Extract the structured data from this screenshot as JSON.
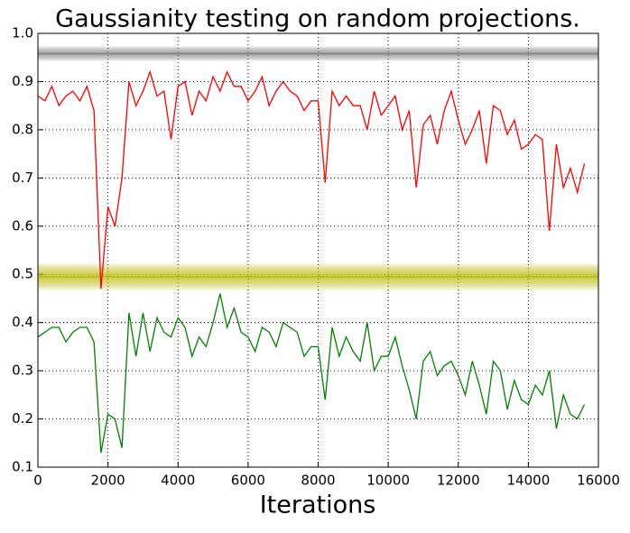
{
  "chart_data": {
    "type": "line",
    "title": "Gaussianity testing on random projections.",
    "xlabel": "Iterations",
    "x": [
      0,
      200,
      400,
      600,
      800,
      1000,
      1200,
      1400,
      1600,
      1800,
      2000,
      2200,
      2400,
      2600,
      2800,
      3000,
      3200,
      3400,
      3600,
      3800,
      4000,
      4200,
      4400,
      4600,
      4800,
      5000,
      5200,
      5400,
      5600,
      5800,
      6000,
      6200,
      6400,
      6600,
      6800,
      7000,
      7200,
      7400,
      7600,
      7800,
      8000,
      8200,
      8400,
      8600,
      8800,
      9000,
      9200,
      9400,
      9600,
      9800,
      10000,
      10200,
      10400,
      10600,
      10800,
      11000,
      11200,
      11400,
      11600,
      11800,
      12000,
      12200,
      12400,
      12600,
      12800,
      13000,
      13200,
      13400,
      13600,
      13800,
      14000,
      14200,
      14400,
      14600,
      14800,
      15000,
      15200,
      15400,
      15600
    ],
    "series": [
      {
        "color": "#ff0000",
        "values": [
          0.87,
          0.86,
          0.89,
          0.85,
          0.87,
          0.88,
          0.86,
          0.89,
          0.84,
          0.47,
          0.64,
          0.6,
          0.7,
          0.9,
          0.85,
          0.88,
          0.92,
          0.87,
          0.88,
          0.78,
          0.89,
          0.9,
          0.83,
          0.88,
          0.86,
          0.91,
          0.88,
          0.92,
          0.89,
          0.89,
          0.86,
          0.88,
          0.91,
          0.85,
          0.88,
          0.9,
          0.88,
          0.87,
          0.84,
          0.86,
          0.86,
          0.69,
          0.88,
          0.85,
          0.87,
          0.85,
          0.85,
          0.8,
          0.88,
          0.83,
          0.85,
          0.87,
          0.8,
          0.84,
          0.68,
          0.81,
          0.83,
          0.77,
          0.84,
          0.88,
          0.82,
          0.77,
          0.8,
          0.84,
          0.73,
          0.85,
          0.84,
          0.79,
          0.82,
          0.76,
          0.77,
          0.79,
          0.78,
          0.59,
          0.77,
          0.68,
          0.72,
          0.67,
          0.73
        ]
      },
      {
        "color": "#008000",
        "values": [
          0.37,
          0.38,
          0.39,
          0.39,
          0.36,
          0.38,
          0.39,
          0.39,
          0.36,
          0.13,
          0.21,
          0.2,
          0.14,
          0.42,
          0.33,
          0.42,
          0.34,
          0.41,
          0.38,
          0.37,
          0.41,
          0.39,
          0.33,
          0.37,
          0.35,
          0.4,
          0.46,
          0.39,
          0.43,
          0.38,
          0.37,
          0.34,
          0.39,
          0.38,
          0.35,
          0.4,
          0.39,
          0.38,
          0.33,
          0.35,
          0.35,
          0.24,
          0.39,
          0.33,
          0.37,
          0.34,
          0.32,
          0.4,
          0.3,
          0.33,
          0.33,
          0.37,
          0.31,
          0.26,
          0.2,
          0.32,
          0.34,
          0.29,
          0.31,
          0.32,
          0.29,
          0.25,
          0.32,
          0.27,
          0.21,
          0.32,
          0.3,
          0.22,
          0.28,
          0.24,
          0.23,
          0.27,
          0.25,
          0.3,
          0.18,
          0.25,
          0.21,
          0.2,
          0.23
        ]
      }
    ],
    "hbands": [
      {
        "y": 0.958,
        "halfwidth": 0.015,
        "color": "#808080"
      },
      {
        "y": 0.495,
        "halfwidth": 0.027,
        "color": "#b8b800"
      }
    ],
    "xlim": [
      0,
      16000
    ],
    "xticks": [
      0,
      2000,
      4000,
      6000,
      8000,
      10000,
      12000,
      14000,
      16000
    ],
    "ylim": [
      0.1,
      1.0
    ],
    "yticks": [
      0.1,
      0.2,
      0.3,
      0.4,
      0.5,
      0.6,
      0.7,
      0.8,
      0.9,
      {
        "value": 1.0,
        "label": "1.0"
      }
    ],
    "grid": true
  }
}
